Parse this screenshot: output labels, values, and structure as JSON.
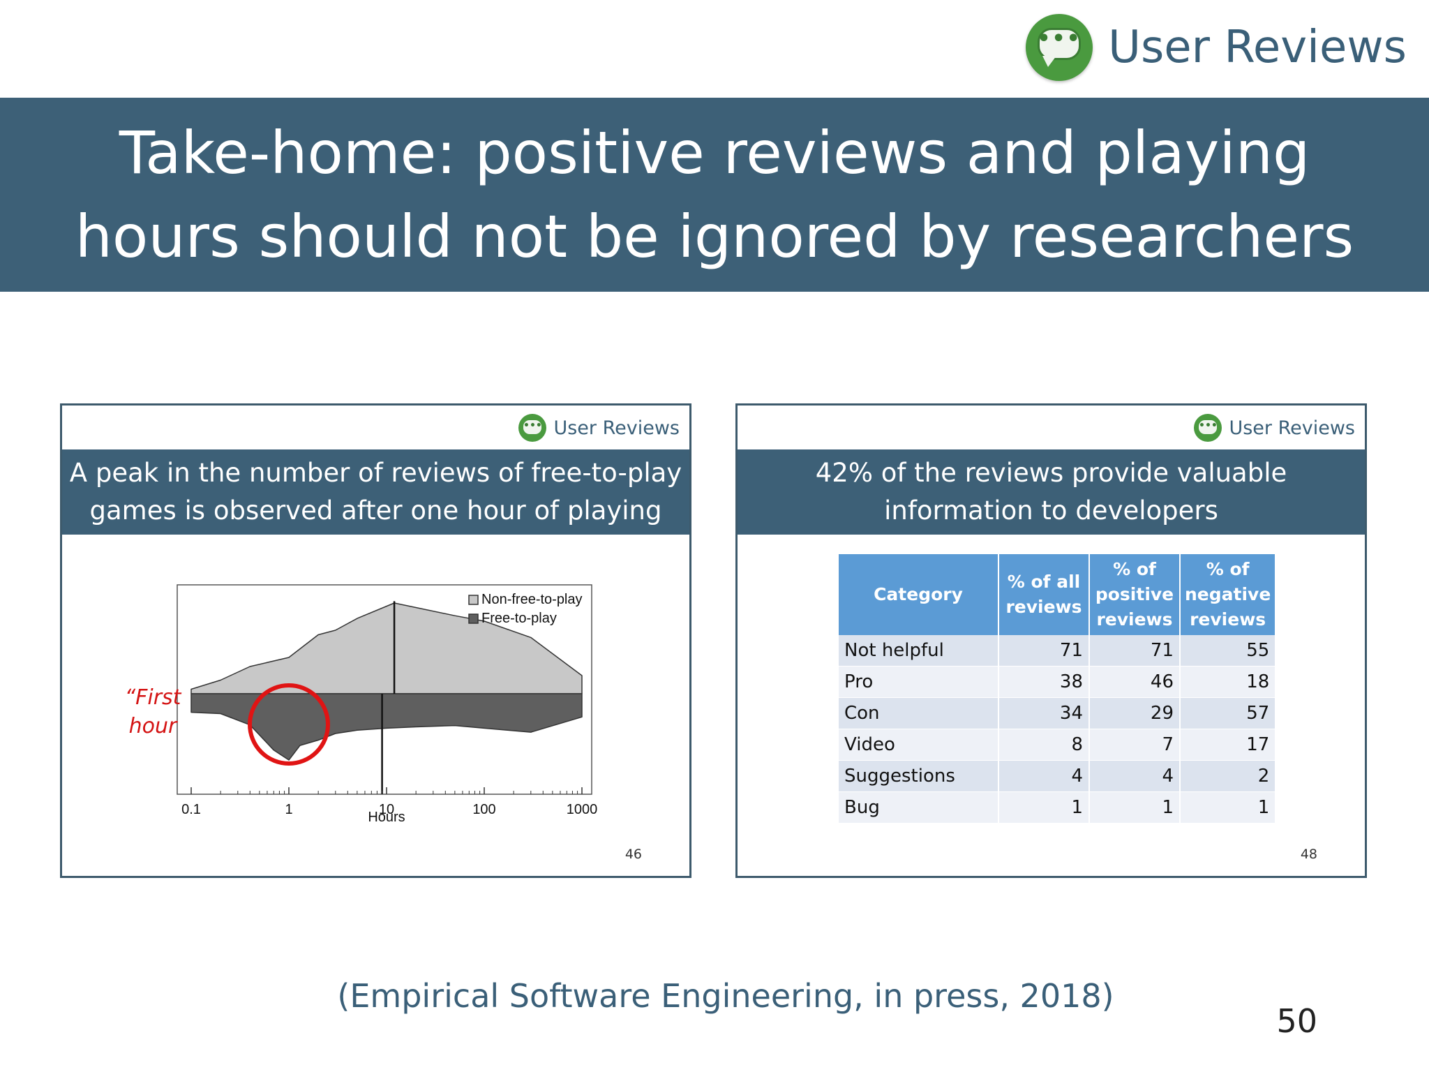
{
  "brand": {
    "label": "User Reviews",
    "icon": "chat-bubble-icon",
    "color": "#4a9a3f"
  },
  "slide": {
    "title": "Take-home: positive reviews and playing hours should not be ignored by researchers",
    "citation": "(Empirical Software Engineering, in press, 2018)",
    "number": "50",
    "banner_color": "#3d6077"
  },
  "left_card": {
    "brand_label": "User Reviews",
    "title": "A peak in the number of reviews of free-to-play games is observed after one hour of playing",
    "page": "46",
    "annotation": "“First hour experience”",
    "chart_data": {
      "type": "area",
      "xlabel": "Hours",
      "x_scale": "log",
      "xlim": [
        0.1,
        1000
      ],
      "x_ticks": [
        "0.1",
        "1",
        "10",
        "100",
        "1000"
      ],
      "legend": [
        "Non-free-to-play",
        "Free-to-play"
      ],
      "legend_position": "top-right",
      "series": [
        {
          "name": "Non-free-to-play",
          "color": "#c8c8c8",
          "median_hours": 12,
          "x": [
            0.1,
            0.2,
            0.4,
            1,
            2,
            3,
            5,
            12,
            20,
            50,
            100,
            300,
            1000
          ],
          "y": [
            0.05,
            0.15,
            0.3,
            0.4,
            0.65,
            0.7,
            0.83,
            1.0,
            0.95,
            0.86,
            0.8,
            0.62,
            0.2
          ]
        },
        {
          "name": "Free-to-play",
          "color": "#5f5f5f",
          "median_hours": 9,
          "x": [
            0.1,
            0.2,
            0.4,
            0.7,
            1,
            1.3,
            2,
            3,
            5,
            10,
            20,
            50,
            100,
            300,
            1000
          ],
          "y": [
            0.28,
            0.3,
            0.47,
            0.85,
            1.0,
            0.78,
            0.7,
            0.6,
            0.55,
            0.52,
            0.5,
            0.48,
            0.52,
            0.58,
            0.35
          ]
        }
      ]
    }
  },
  "right_card": {
    "brand_label": "User Reviews",
    "title": "42% of the reviews provide valuable information to developers",
    "page": "48",
    "table": {
      "headers": [
        "Category",
        "% of all reviews",
        "% of positive reviews",
        "% of negative reviews"
      ],
      "rows": [
        [
          "Not helpful",
          "71",
          "71",
          "55"
        ],
        [
          "Pro",
          "38",
          "46",
          "18"
        ],
        [
          "Con",
          "34",
          "29",
          "57"
        ],
        [
          "Video",
          "8",
          "7",
          "17"
        ],
        [
          "Suggestions",
          "4",
          "4",
          "2"
        ],
        [
          "Bug",
          "1",
          "1",
          "1"
        ]
      ]
    }
  }
}
